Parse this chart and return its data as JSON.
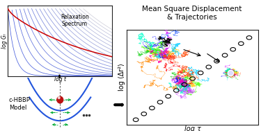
{
  "title_right": "Mean Square Displacement\n& Trajectories",
  "xlabel_right": "log τ",
  "ylabel_right": "log ⟨Δr²⟩",
  "xlabel_left_top": "log t",
  "ylabel_left_top": "log Gᵣ",
  "label_left_top": "Relaxation\nSpectrum",
  "label_left_bottom": "c-HBBP\nModel",
  "bg_color": "#ffffff",
  "num_blue_curves": 20,
  "red_curve_color": "#cc0000",
  "msd_circle_color": "#111111",
  "trajectory_colors": [
    "#ff0000",
    "#ff8800",
    "#ffcc00",
    "#00cc00",
    "#00ccff",
    "#0000ff",
    "#cc00ff",
    "#ff00aa",
    "#44ff00",
    "#ff4400",
    "#00ffcc",
    "#cc44ff",
    "#ffff00",
    "#00ff88"
  ],
  "parabola_color": "#2255dd",
  "arrow_color": "#00aa33"
}
